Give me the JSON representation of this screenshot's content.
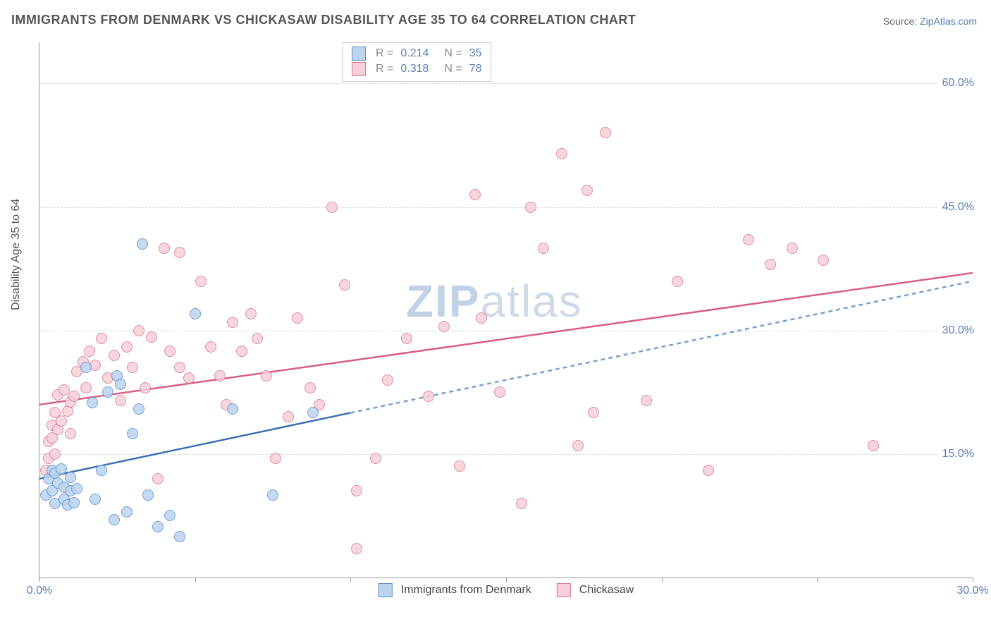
{
  "title": "IMMIGRANTS FROM DENMARK VS CHICKASAW DISABILITY AGE 35 TO 64 CORRELATION CHART",
  "source_label": "Source: ",
  "source_link": "ZipAtlas.com",
  "ylabel": "Disability Age 35 to 64",
  "watermark_a": "ZIP",
  "watermark_b": "atlas",
  "chart": {
    "type": "scatter",
    "xlim": [
      0,
      30
    ],
    "ylim": [
      0,
      65
    ],
    "x_ticks": [
      0,
      5,
      10,
      15,
      20,
      25,
      30
    ],
    "x_tick_labels": {
      "0": "0.0%",
      "30": "30.0%"
    },
    "y_ticks": [
      15,
      30,
      45,
      60
    ],
    "y_tick_labels": [
      "15.0%",
      "30.0%",
      "45.0%",
      "60.0%"
    ],
    "background_color": "#ffffff",
    "grid_color": "#d8d8d8",
    "axis_color": "#999999",
    "axis_font_color": "#5b7fb8",
    "label_font_color": "#555555"
  },
  "series": [
    {
      "name": "Immigrants from Denmark",
      "key": "denmark",
      "fill": "#bcd4ee",
      "stroke": "#5c8fcf",
      "line_color": "#3b6fb5",
      "line_dash_color": "#7a9fd0",
      "R": "0.214",
      "N": "35",
      "trend_solid": {
        "x1": 0,
        "y1": 12,
        "x2": 10,
        "y2": 20
      },
      "trend_dash": {
        "x1": 10,
        "y1": 20,
        "x2": 30,
        "y2": 36
      },
      "points": [
        [
          0.2,
          10.0
        ],
        [
          0.3,
          12.0
        ],
        [
          0.4,
          10.5
        ],
        [
          0.4,
          13.0
        ],
        [
          0.5,
          9.0
        ],
        [
          0.5,
          12.7
        ],
        [
          0.6,
          11.5
        ],
        [
          0.7,
          13.2
        ],
        [
          0.8,
          11.0
        ],
        [
          0.8,
          9.5
        ],
        [
          0.9,
          8.8
        ],
        [
          1.0,
          12.2
        ],
        [
          1.0,
          10.5
        ],
        [
          1.1,
          9.1
        ],
        [
          1.2,
          10.8
        ],
        [
          1.5,
          25.5
        ],
        [
          1.7,
          21.2
        ],
        [
          1.8,
          9.5
        ],
        [
          2.0,
          13.0
        ],
        [
          2.2,
          22.5
        ],
        [
          2.4,
          7.0
        ],
        [
          2.5,
          24.5
        ],
        [
          2.6,
          23.5
        ],
        [
          2.8,
          8.0
        ],
        [
          3.0,
          17.5
        ],
        [
          3.2,
          20.5
        ],
        [
          3.3,
          40.5
        ],
        [
          3.5,
          10.0
        ],
        [
          3.8,
          6.2
        ],
        [
          4.2,
          7.5
        ],
        [
          4.5,
          5.0
        ],
        [
          5.0,
          32.0
        ],
        [
          6.2,
          20.5
        ],
        [
          7.5,
          10.0
        ],
        [
          8.8,
          20.0
        ]
      ]
    },
    {
      "name": "Chickasaw",
      "key": "chickasaw",
      "fill": "#f6cfd8",
      "stroke": "#d97a95",
      "line_color": "#d85e82",
      "R": "0.318",
      "N": "78",
      "trend_solid": {
        "x1": 0,
        "y1": 21,
        "x2": 30,
        "y2": 37
      },
      "points": [
        [
          0.2,
          13.0
        ],
        [
          0.3,
          14.5
        ],
        [
          0.3,
          16.5
        ],
        [
          0.4,
          17.0
        ],
        [
          0.4,
          18.5
        ],
        [
          0.5,
          15.0
        ],
        [
          0.5,
          20.0
        ],
        [
          0.6,
          18.0
        ],
        [
          0.6,
          22.2
        ],
        [
          0.7,
          19.0
        ],
        [
          0.8,
          22.8
        ],
        [
          0.9,
          20.2
        ],
        [
          1.0,
          21.3
        ],
        [
          1.0,
          17.5
        ],
        [
          1.1,
          22.0
        ],
        [
          1.2,
          25.0
        ],
        [
          1.4,
          26.2
        ],
        [
          1.5,
          23.0
        ],
        [
          1.6,
          27.5
        ],
        [
          1.8,
          25.8
        ],
        [
          2.0,
          29.0
        ],
        [
          2.2,
          24.2
        ],
        [
          2.4,
          27.0
        ],
        [
          2.6,
          21.5
        ],
        [
          2.8,
          28.0
        ],
        [
          3.0,
          25.5
        ],
        [
          3.2,
          30.0
        ],
        [
          3.4,
          23.0
        ],
        [
          3.6,
          29.2
        ],
        [
          3.8,
          12.0
        ],
        [
          4.0,
          40.0
        ],
        [
          4.2,
          27.5
        ],
        [
          4.5,
          25.5
        ],
        [
          4.5,
          39.5
        ],
        [
          4.8,
          24.2
        ],
        [
          5.2,
          36.0
        ],
        [
          5.5,
          28.0
        ],
        [
          5.8,
          24.5
        ],
        [
          6.0,
          21.0
        ],
        [
          6.2,
          31.0
        ],
        [
          6.5,
          27.5
        ],
        [
          6.8,
          32.0
        ],
        [
          7.0,
          29.0
        ],
        [
          7.3,
          24.5
        ],
        [
          7.6,
          14.5
        ],
        [
          8.0,
          19.5
        ],
        [
          8.3,
          31.5
        ],
        [
          8.7,
          23.0
        ],
        [
          9.0,
          21.0
        ],
        [
          9.4,
          45.0
        ],
        [
          9.8,
          35.5
        ],
        [
          10.2,
          10.5
        ],
        [
          10.2,
          3.5
        ],
        [
          10.8,
          14.5
        ],
        [
          11.2,
          24.0
        ],
        [
          11.8,
          29.0
        ],
        [
          12.5,
          22.0
        ],
        [
          13.0,
          30.5
        ],
        [
          13.5,
          13.5
        ],
        [
          14.0,
          46.5
        ],
        [
          14.2,
          31.5
        ],
        [
          14.8,
          22.5
        ],
        [
          15.5,
          9.0
        ],
        [
          15.8,
          45.0
        ],
        [
          16.2,
          40.0
        ],
        [
          16.8,
          51.5
        ],
        [
          17.3,
          16.0
        ],
        [
          17.6,
          47.0
        ],
        [
          17.8,
          20.0
        ],
        [
          18.2,
          54.0
        ],
        [
          19.5,
          21.5
        ],
        [
          20.5,
          36.0
        ],
        [
          21.5,
          13.0
        ],
        [
          22.8,
          41.0
        ],
        [
          23.5,
          38.0
        ],
        [
          24.2,
          40.0
        ],
        [
          25.2,
          38.5
        ],
        [
          26.8,
          16.0
        ]
      ]
    }
  ],
  "point_radius": 8
}
